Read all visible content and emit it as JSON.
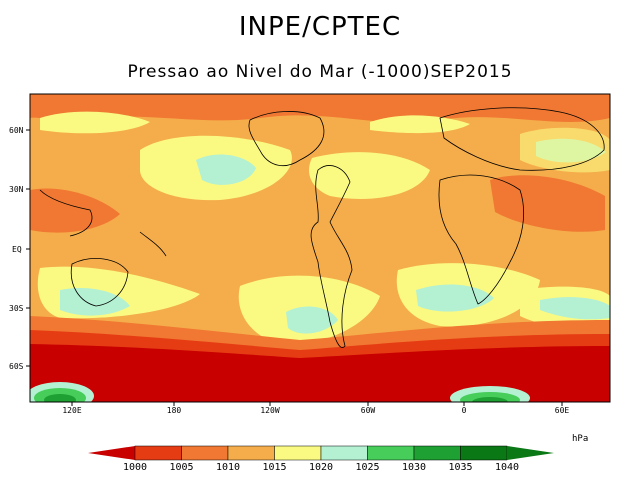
{
  "title": "INPE/CPTEC",
  "subtitle": "Pressao ao Nivel do Mar (-1000)SEP2015",
  "lat_labels": [
    "60N",
    "30N",
    "EQ",
    "30S",
    "60S"
  ],
  "lon_labels": [
    "120E",
    "180",
    "120W",
    "60W",
    "0",
    "60E"
  ],
  "colorbar": {
    "unit": "hPa",
    "labels": [
      "1000",
      "1005",
      "1010",
      "1015",
      "1020",
      "1025",
      "1030",
      "1035",
      "1040"
    ],
    "colors": [
      "#c80000",
      "#e63c14",
      "#f07832",
      "#f5ad4b",
      "#fafa82",
      "#b4f0d2",
      "#46cd5a",
      "#1ea032",
      "#0a7814"
    ]
  }
}
